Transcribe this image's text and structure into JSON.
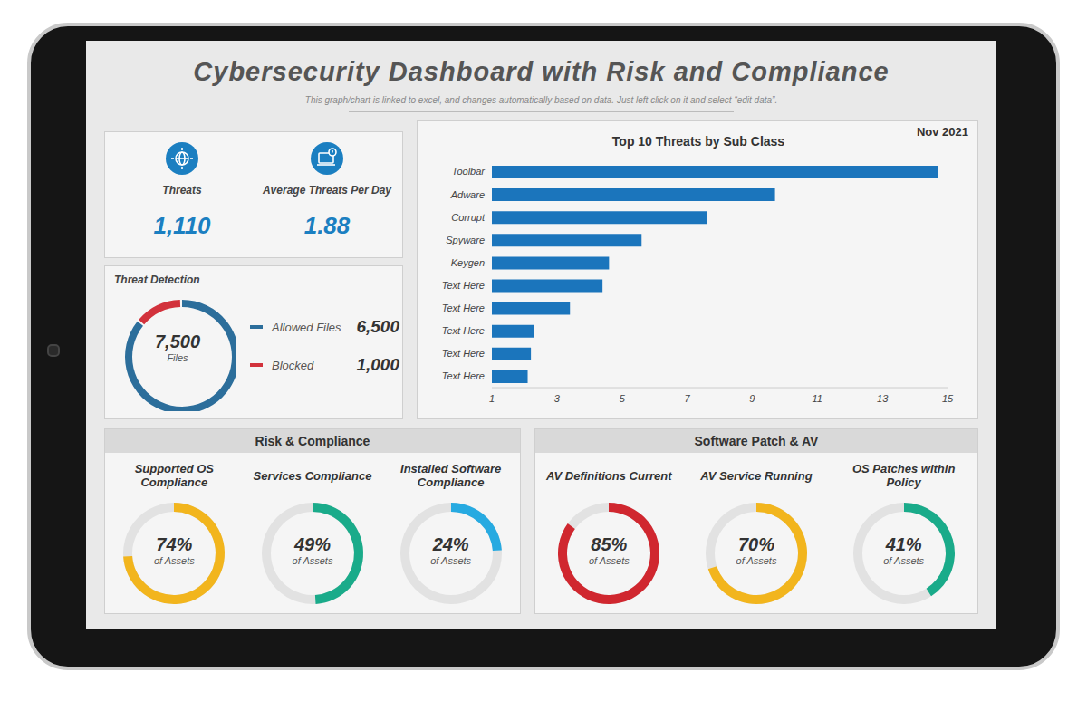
{
  "title": "Cybersecurity Dashboard with Risk and Compliance",
  "subtitle": "This graph/chart is linked to excel, and changes automatically based on data. Just left click on it and select “edit data”.",
  "kpis": [
    {
      "label": "Threats",
      "value": 1110
    },
    {
      "label": "Average Threats Per Day",
      "value": 1.88
    }
  ],
  "chart_data": [
    {
      "type": "pie",
      "title": "Threat Detection",
      "categories": [
        "Allowed Files",
        "Blocked"
      ],
      "values": [
        6500,
        1000
      ],
      "colors": [
        "#2c6e9b",
        "#d2323c"
      ],
      "total": 7500,
      "annotation": "Files"
    },
    {
      "type": "bar",
      "orientation": "horizontal",
      "title": "Top 10 Threats by Sub Class",
      "subtitle": "Nov 2021",
      "categories": [
        "Toolbar",
        "Adware",
        "Corrupt",
        "Spyware",
        "Keygen",
        "Text Here",
        "Text Here",
        "Text Here",
        "Text Here",
        "Text Here"
      ],
      "values": [
        14.7,
        9.7,
        7.6,
        5.6,
        4.6,
        4.4,
        3.4,
        2.3,
        2.2,
        2.1
      ],
      "color": "#1b75bc",
      "xlim": [
        1,
        15
      ],
      "xticks": [
        1,
        3,
        5,
        7,
        9,
        11,
        13,
        15
      ],
      "grid": false
    }
  ],
  "groups": [
    {
      "title": "Risk & Compliance",
      "chart_data": [
        {
          "type": "radial_bar",
          "title": "Supported OS Compliance",
          "values": [
            74
          ],
          "value_labels": [
            "74%"
          ],
          "annotation": "of Assets",
          "color": "#f2b51d",
          "ylim": [
            0,
            100
          ],
          "tick_labels": false
        },
        {
          "type": "radial_bar",
          "title": "Services Compliance",
          "values": [
            49
          ],
          "value_labels": [
            "49%"
          ],
          "annotation": "of Assets",
          "color": "#1aab8a",
          "ylim": [
            0,
            100
          ],
          "tick_labels": false
        },
        {
          "type": "radial_bar",
          "title": "Installed Software Compliance",
          "values": [
            24
          ],
          "value_labels": [
            "24%"
          ],
          "annotation": "of Assets",
          "color": "#27aae1",
          "ylim": [
            0,
            100
          ],
          "tick_labels": false
        }
      ]
    },
    {
      "title": "Software Patch & AV",
      "chart_data": [
        {
          "type": "radial_bar",
          "title": "AV Definitions Current",
          "values": [
            85
          ],
          "value_labels": [
            "85%"
          ],
          "annotation": "of Assets",
          "color": "#d0272f",
          "ylim": [
            0,
            100
          ],
          "tick_labels": false
        },
        {
          "type": "radial_bar",
          "title": "AV Service Running",
          "values": [
            70
          ],
          "value_labels": [
            "70%"
          ],
          "annotation": "of Assets",
          "color": "#f2b51d",
          "ylim": [
            0,
            100
          ],
          "tick_labels": false
        },
        {
          "type": "radial_bar",
          "title": "OS Patches within Policy",
          "values": [
            41
          ],
          "value_labels": [
            "41%"
          ],
          "annotation": "of Assets",
          "color": "#1aab8a",
          "ylim": [
            0,
            100
          ],
          "tick_labels": false
        }
      ]
    }
  ]
}
